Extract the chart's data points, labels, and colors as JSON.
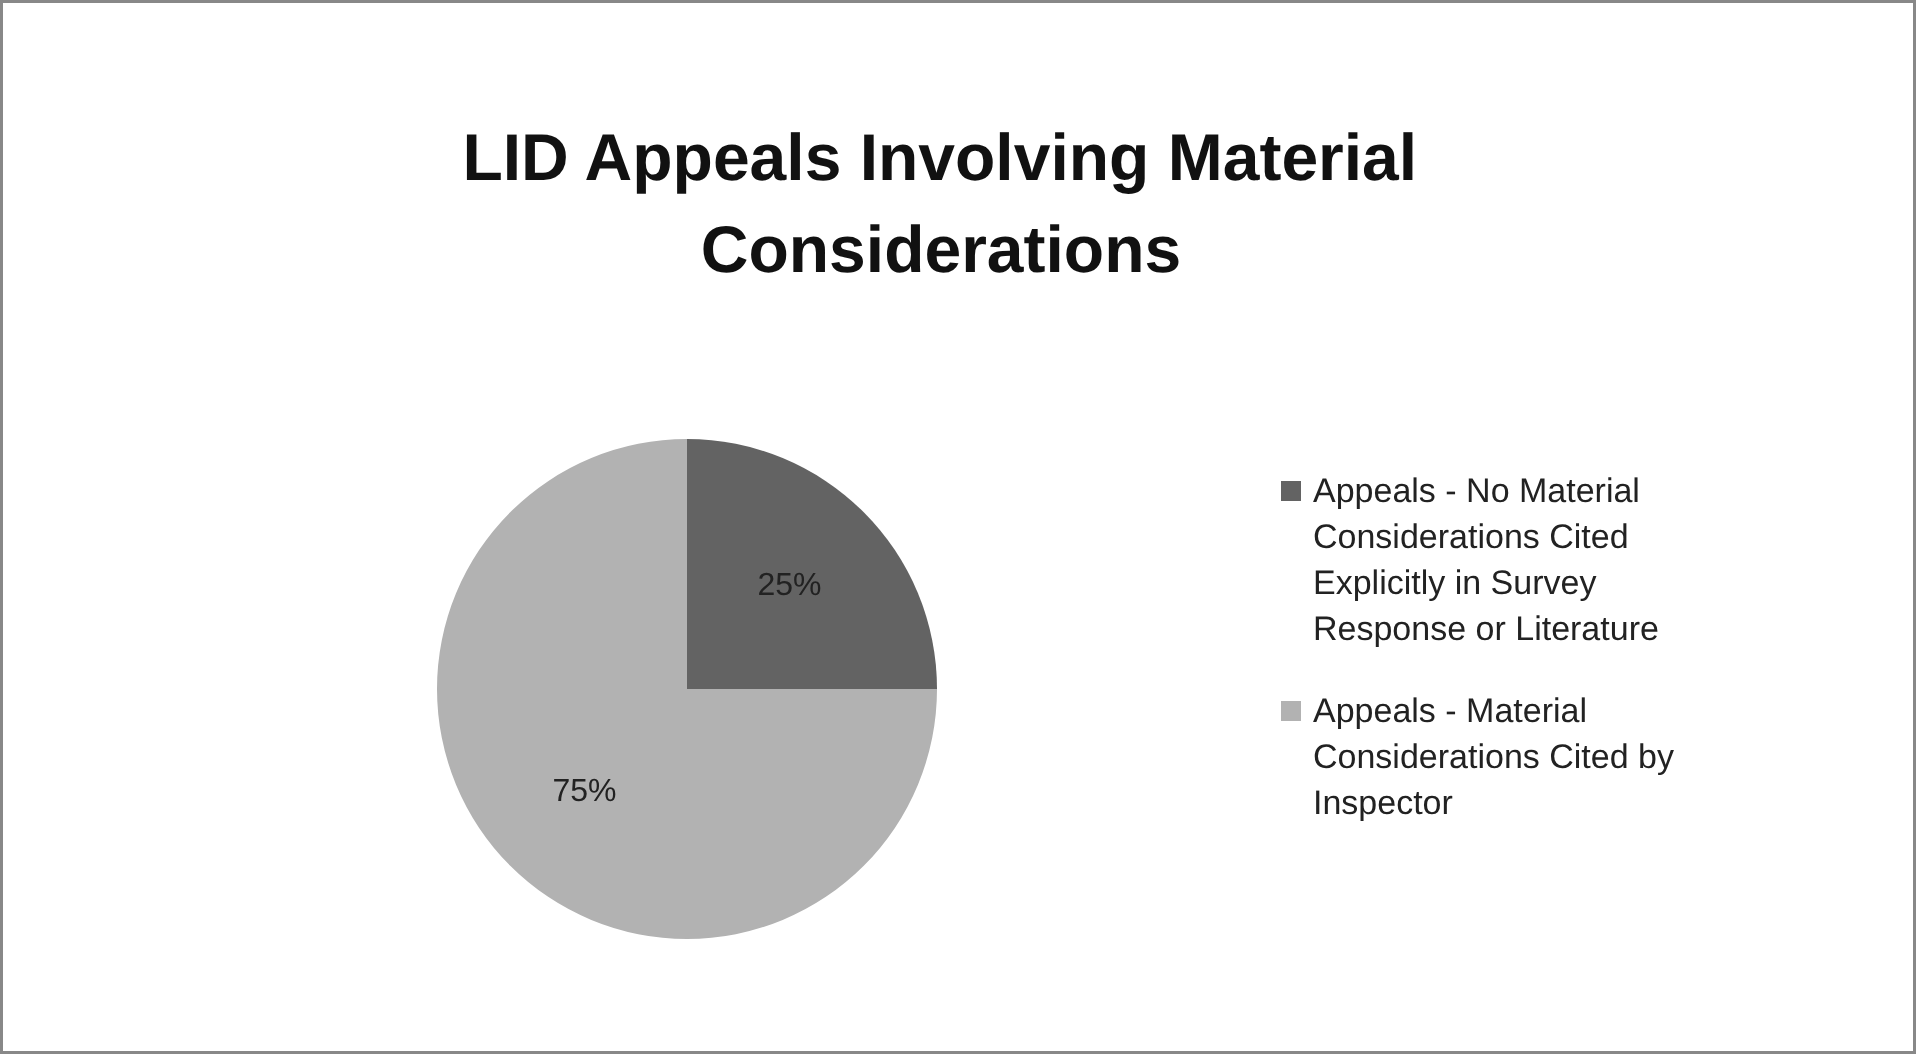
{
  "chart_data": {
    "type": "pie",
    "title": "LID Appeals Involving Material Considerations",
    "categories": [
      "Appeals - No Material Considerations Cited Explicitly in Survey Response or Literature",
      "Appeals - Material Considerations Cited by Inspector"
    ],
    "values": [
      25,
      75
    ],
    "colors": [
      "#636363",
      "#b2b2b2"
    ],
    "value_labels": [
      "25%",
      "75%"
    ],
    "legend": "right"
  }
}
